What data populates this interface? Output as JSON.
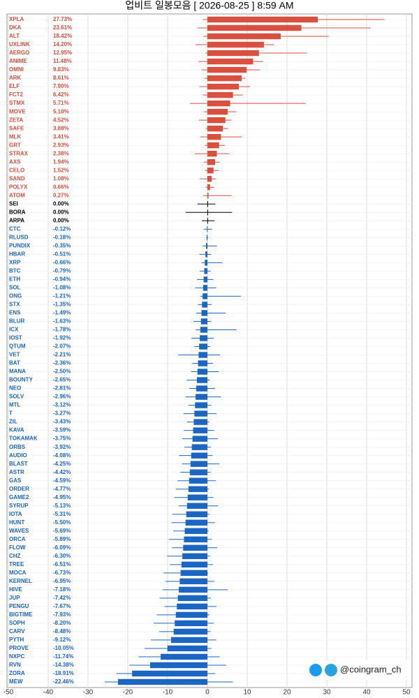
{
  "chart_data": {
    "type": "range-bar",
    "title": "업비트 일봉모음 [ 2026-08-25 ]  8:59 AM",
    "watermark": "@coingram_ch",
    "categories": [
      "XPLA",
      "DKA",
      "ALT",
      "UXLINK",
      "AERGO",
      "ANIME",
      "OMNI",
      "ARK",
      "ELF",
      "FCT2",
      "STMX",
      "MOVE",
      "ZETA",
      "SAFE",
      "MLK",
      "GRT",
      "STRAX",
      "AXS",
      "CELO",
      "SAND",
      "POLYX",
      "ATOM",
      "SEI",
      "BORA",
      "ARPA",
      "CTC",
      "RLUSD",
      "PUNDIX",
      "HBAR",
      "XRP",
      "BTC",
      "ETH",
      "SOL",
      "ONG",
      "STX",
      "ENS",
      "BLUR",
      "ICX",
      "IOST",
      "QTUM",
      "VET",
      "BAT",
      "MANA",
      "BOUNTY",
      "NEO",
      "SOLV",
      "MTL",
      "T",
      "ZIL",
      "KAVA",
      "TOKAMAK",
      "ORBS",
      "AUDIO",
      "BLAST",
      "ASTR",
      "GAS",
      "ORDER",
      "GAME2",
      "SYRUP",
      "IOTA",
      "HUNT",
      "WAVES",
      "ORCA",
      "FLOW",
      "CHZ",
      "TREE",
      "MOCA",
      "KERNEL",
      "HIVE",
      "JUP",
      "PENGU",
      "BIGTIME",
      "SOPH",
      "CARV",
      "PYTH",
      "PROVE",
      "NXPC",
      "RVN",
      "ZORA",
      "MEW"
    ],
    "values": [
      27.73,
      23.61,
      18.42,
      14.2,
      12.95,
      11.48,
      9.83,
      8.61,
      7.9,
      6.42,
      5.71,
      5.1,
      4.52,
      3.88,
      3.41,
      2.93,
      2.38,
      1.94,
      1.52,
      1.08,
      0.66,
      0.27,
      0,
      0,
      0,
      -0.12,
      -0.18,
      -0.35,
      -0.51,
      -0.66,
      -0.79,
      -0.94,
      -1.08,
      -1.21,
      -1.35,
      -1.49,
      -1.63,
      -1.78,
      -1.92,
      -2.07,
      -2.21,
      -2.36,
      -2.5,
      -2.65,
      -2.81,
      -2.96,
      -3.12,
      -3.27,
      -3.43,
      -3.59,
      -3.75,
      -3.92,
      -4.08,
      -4.25,
      -4.42,
      -4.59,
      -4.77,
      -4.95,
      -5.13,
      -5.31,
      -5.5,
      -5.69,
      -5.89,
      -6.09,
      -6.3,
      -6.51,
      -6.73,
      -6.95,
      -7.18,
      -7.42,
      -7.67,
      -7.93,
      -8.2,
      -8.48,
      -9.12,
      -10.05,
      -11.74,
      -14.38,
      -18.91,
      -22.46
    ],
    "value_labels": [
      "27.73%",
      "23.61%",
      "18.42%",
      "14.20%",
      "12.95%",
      "11.48%",
      "9.83%",
      "8.61%",
      "7.90%",
      "6.42%",
      "5.71%",
      "5.10%",
      "4.52%",
      "3.88%",
      "3.41%",
      "2.93%",
      "2.38%",
      "1.94%",
      "1.52%",
      "1.08%",
      "0.66%",
      "0.27%",
      "0.00%",
      "0.00%",
      "0.00%",
      "-0.12%",
      "-0.18%",
      "-0.35%",
      "-0.51%",
      "-0.66%",
      "-0.79%",
      "-0.94%",
      "-1.08%",
      "-1.21%",
      "-1.35%",
      "-1.49%",
      "-1.63%",
      "-1.78%",
      "-1.92%",
      "-2.07%",
      "-2.21%",
      "-2.36%",
      "-2.50%",
      "-2.65%",
      "-2.81%",
      "-2.96%",
      "-3.12%",
      "-3.27%",
      "-3.43%",
      "-3.59%",
      "-3.75%",
      "-3.92%",
      "-4.08%",
      "-4.25%",
      "-4.42%",
      "-4.59%",
      "-4.77%",
      "-4.95%",
      "-5.13%",
      "-5.31%",
      "-5.50%",
      "-5.69%",
      "-5.89%",
      "-6.09%",
      "-6.30%",
      "-6.51%",
      "-6.73%",
      "-6.95%",
      "-7.18%",
      "-7.42%",
      "-7.67%",
      "-7.93%",
      "-8.20%",
      "-8.48%",
      "-9.12%",
      "-10.05%",
      "-11.74%",
      "-14.38%",
      "-18.91%",
      "-22.46%"
    ],
    "lows": [
      -1.2,
      -2.5,
      -1,
      -3,
      -0.5,
      -2.2,
      -1.5,
      -0.8,
      -2,
      -1.1,
      -4.4,
      -0.9,
      -2.1,
      -0.4,
      -1.8,
      -0.7,
      -3.2,
      -1,
      -0.6,
      -1.9,
      -0.4,
      -1.1,
      -2.5,
      -5.5,
      -1.4,
      -0.9,
      -0.3,
      -1.2,
      -2,
      -1.5,
      -1.9,
      -2.6,
      -3.1,
      -1.8,
      -2.4,
      -2.8,
      -3.5,
      -2.9,
      -4,
      -3.3,
      -7.3,
      -3.8,
      -4.1,
      -5.2,
      -4.6,
      -5.5,
      -4.8,
      -6,
      -5.1,
      -5.9,
      -6.3,
      -5.8,
      -7.1,
      -6.4,
      -6.8,
      -7.5,
      -7.9,
      -8.3,
      -7.2,
      -8.8,
      -9,
      -8.6,
      -9.7,
      -8.9,
      -10.1,
      -9.4,
      -11,
      -10.5,
      -11.3,
      -12,
      -10.8,
      -12.7,
      -13.5,
      -12.1,
      -14.2,
      -15.8,
      -17.3,
      -19.6,
      -22.9,
      -25.8
    ],
    "highs": [
      44.5,
      41,
      30.5,
      16.8,
      25,
      14,
      13.2,
      9.5,
      10.7,
      8.9,
      24.7,
      7.3,
      6,
      5.2,
      8.6,
      4.4,
      5.5,
      3.1,
      2.8,
      2.2,
      1.7,
      6.1,
      2,
      6.2,
      1.8,
      1.2,
      0.2,
      2.4,
      1,
      3.8,
      0.8,
      1.5,
      2.2,
      8.4,
      1.1,
      4.6,
      0.9,
      7.3,
      1.6,
      0.7,
      3.2,
      1.4,
      2.9,
      0.6,
      1.9,
      3.4,
      1,
      2.3,
      0.5,
      1.7,
      2.6,
      0.9,
      1.3,
      3,
      0.8,
      2.1,
      0.4,
      1.5,
      2.7,
      0.6,
      1.9,
      0.3,
      1.1,
      2.5,
      0.7,
      1.4,
      0.2,
      1.8,
      5.1,
      0.9,
      2.3,
      0.5,
      1.6,
      0.8,
      2.2,
      1,
      3.1,
      4.7,
      2,
      6.4
    ],
    "up_color": "#d9503f",
    "down_color": "#1a66c2",
    "flat_color": "#000000",
    "xlim": [
      -50,
      50
    ],
    "xticks": [
      -50,
      -40,
      -30,
      -20,
      -10,
      0,
      10,
      20,
      30,
      40,
      50
    ],
    "grid": true
  }
}
